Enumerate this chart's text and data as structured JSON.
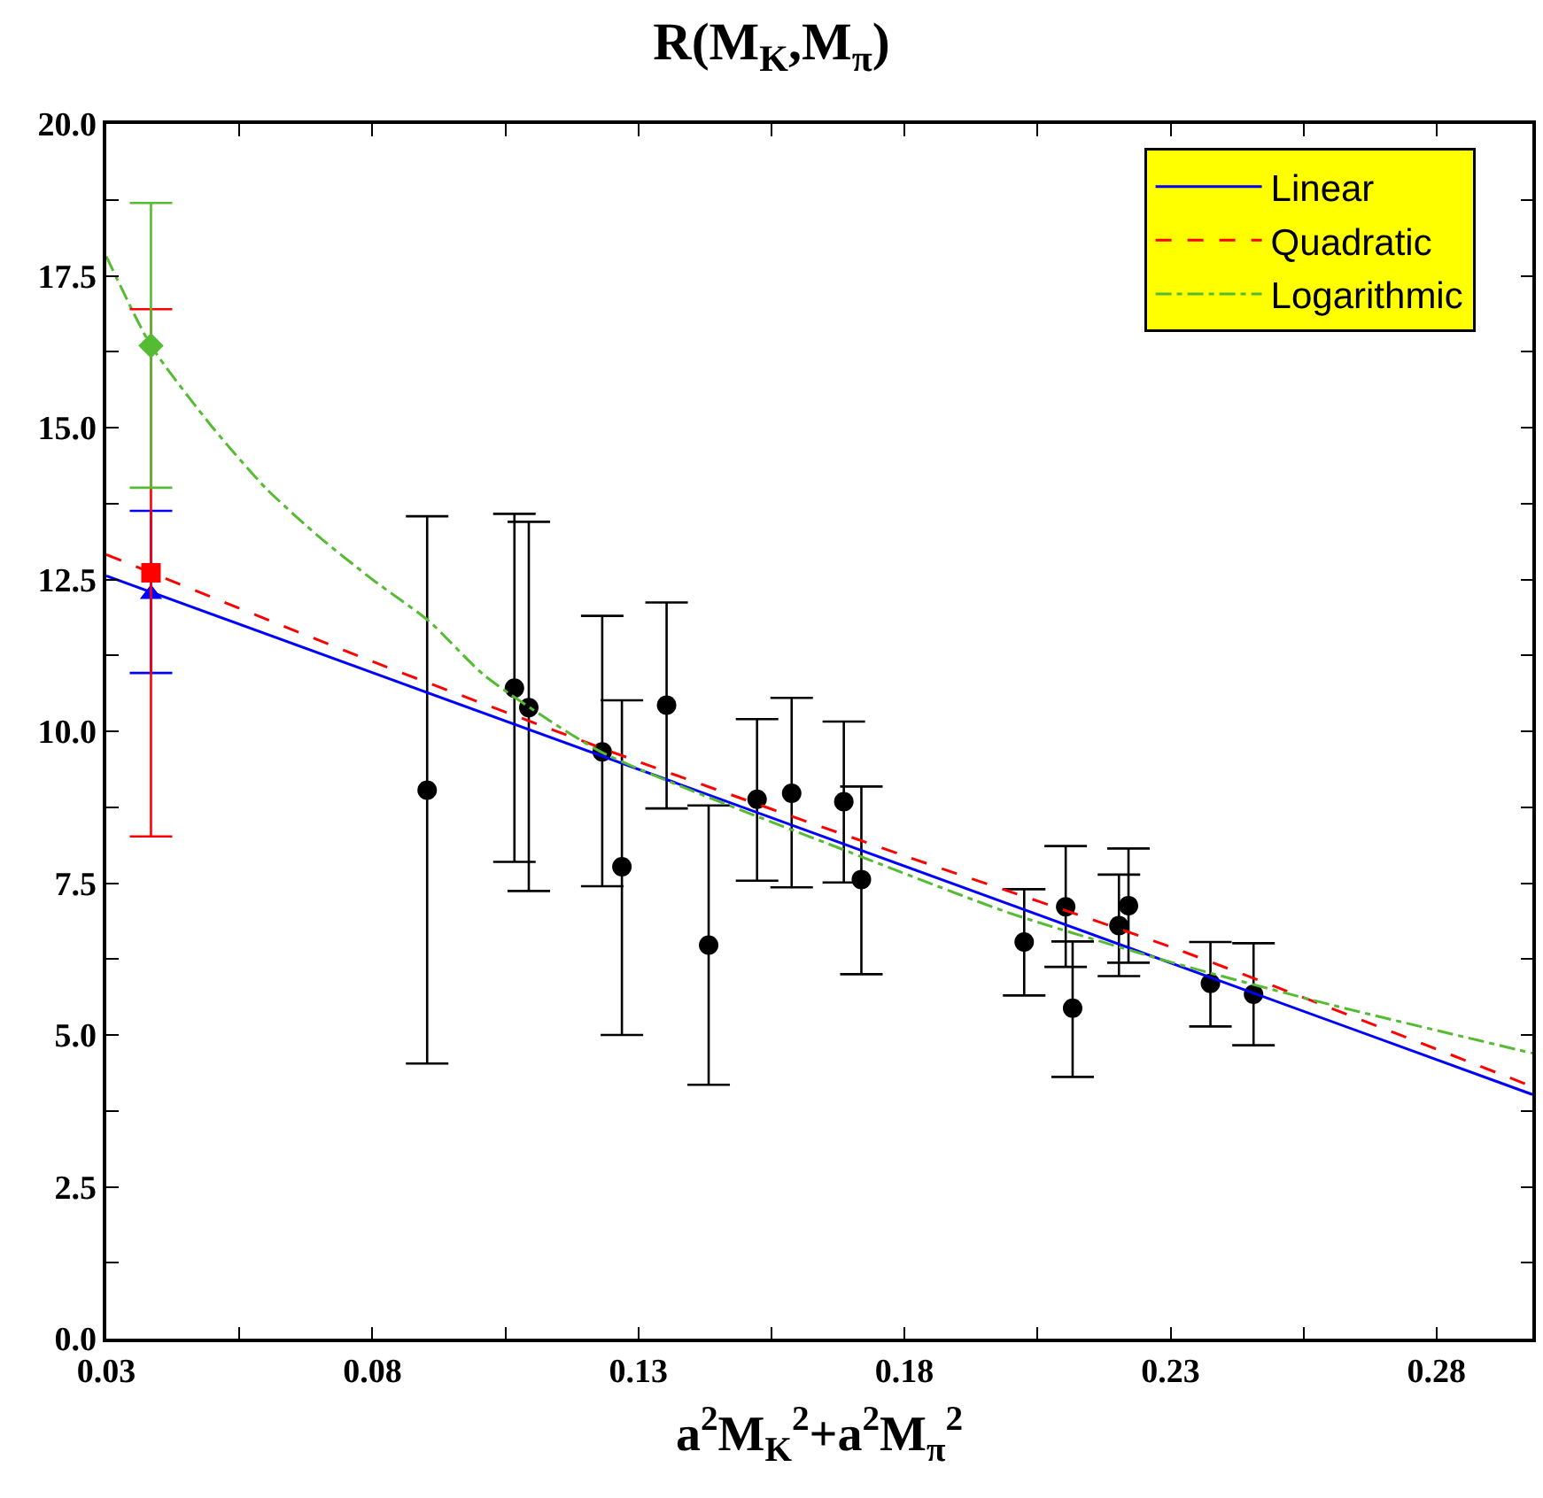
{
  "chart_data": {
    "type": "scatter",
    "title": "R(M$_{K}$,M$_{π}$)",
    "xlabel": "a$^{2}$M$_{K}$$^{2}$+a$^{2}$M$_{π}$$^{2}$",
    "xlim": [
      0.03,
      0.298
    ],
    "ylim": [
      0,
      20
    ],
    "xticks": [
      0.03,
      {
        "value": 0.055,
        "label": null
      },
      0.08,
      {
        "value": 0.105,
        "label": null
      },
      0.13,
      {
        "value": 0.155,
        "label": null
      },
      0.18,
      {
        "value": 0.205,
        "label": null
      },
      0.23,
      {
        "value": 0.255,
        "label": null
      },
      0.28
    ],
    "yticks": [
      {
        "value": 0,
        "label": "0.0"
      },
      {
        "value": 1.25,
        "label": null
      },
      {
        "value": 2.5,
        "label": "2.5"
      },
      {
        "value": 3.75,
        "label": null
      },
      {
        "value": 5,
        "label": "5.0"
      },
      {
        "value": 6.25,
        "label": null
      },
      {
        "value": 7.5,
        "label": "7.5"
      },
      {
        "value": 8.75,
        "label": null
      },
      {
        "value": 10,
        "label": "10.0"
      },
      {
        "value": 11.25,
        "label": null
      },
      {
        "value": 12.5,
        "label": "12.5"
      },
      {
        "value": 13.75,
        "label": null
      },
      {
        "value": 15,
        "label": "15.0"
      },
      {
        "value": 16.25,
        "label": null
      },
      {
        "value": 17.5,
        "label": "17.5"
      },
      {
        "value": 18.75,
        "label": null
      },
      {
        "value": 20,
        "label": "20.0"
      }
    ],
    "legend": "top right",
    "series": [
      {
        "color": "#000000",
        "marker": "circle",
        "x": [
          0.0903,
          0.1067,
          0.1094,
          0.1232,
          0.1269,
          0.1353,
          0.1432,
          0.1523,
          0.1588,
          0.1686,
          0.1719,
          0.2025,
          0.2103,
          0.2116,
          0.2203,
          0.2221,
          0.2375,
          0.2456
        ],
        "values": [
          9.03,
          10.71,
          10.39,
          9.66,
          7.77,
          10.43,
          6.48,
          8.88,
          8.98,
          8.84,
          7.56,
          6.53,
          7.11,
          5.44,
          6.8,
          7.13,
          5.85,
          5.67
        ],
        "errors": [
          [
            4.53,
            13.54
          ],
          [
            7.85,
            13.58
          ],
          [
            7.37,
            13.45
          ],
          [
            7.45,
            11.9
          ],
          [
            5.0,
            10.51
          ],
          [
            8.73,
            12.12
          ],
          [
            4.18,
            8.78
          ],
          [
            7.54,
            10.2
          ],
          [
            7.43,
            10.55
          ],
          [
            7.51,
            10.16
          ],
          [
            6.0,
            9.09
          ],
          [
            5.65,
            7.4
          ],
          [
            6.12,
            8.11
          ],
          [
            4.31,
            6.54
          ],
          [
            5.97,
            7.64
          ],
          [
            6.19,
            8.07
          ],
          [
            5.14,
            6.53
          ],
          [
            4.83,
            6.51
          ]
        ]
      },
      {
        "type": "line",
        "name": "Linear",
        "color": "#0000ff",
        "line_style": "solid",
        "marker": "none",
        "x": [
          0.03,
          0.298
        ],
        "values": [
          12.56,
          4.02
        ]
      },
      {
        "type": "line",
        "name": "Quadratic",
        "color": "#ff0000",
        "line_style": "dashed",
        "marker": "none",
        "x": [
          0.03,
          0.08,
          0.13,
          0.18,
          0.23,
          0.298
        ],
        "values": [
          12.91,
          11.15,
          9.5,
          7.95,
          6.45,
          4.15
        ]
      },
      {
        "type": "line",
        "name": "Logarithmic",
        "color": "#55bb33",
        "line_style": "dashdot",
        "marker": "none",
        "x": [
          0.03,
          0.0384,
          0.05,
          0.06,
          0.07,
          0.08,
          0.0907,
          0.1012,
          0.123,
          0.17,
          0.2,
          0.23,
          0.26,
          0.298
        ],
        "values": [
          17.82,
          16.35,
          15.0,
          14.0,
          13.2,
          12.5,
          11.81,
          10.91,
          9.66,
          8.0,
          7.0,
          6.2,
          5.5,
          4.7
        ]
      },
      {
        "color": "#0000ff",
        "marker": "triangle",
        "x": [
          0.0384
        ],
        "values": [
          12.26
        ],
        "errors": [
          [
            10.96,
            13.63
          ]
        ]
      },
      {
        "color": "#ff0000",
        "marker": "square",
        "x": [
          0.0384
        ],
        "values": [
          12.61
        ],
        "errors": [
          [
            8.27,
            16.95
          ]
        ]
      },
      {
        "color": "#55bb33",
        "marker": "diamond",
        "x": [
          0.0384
        ],
        "values": [
          16.35
        ],
        "errors": [
          [
            14.01,
            18.7
          ]
        ]
      }
    ]
  }
}
